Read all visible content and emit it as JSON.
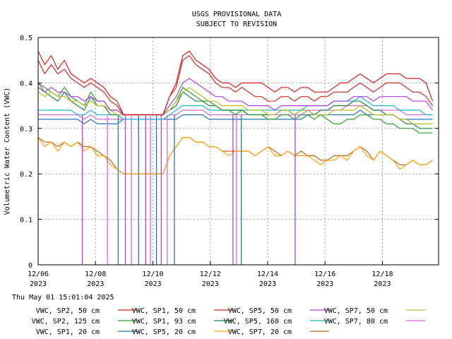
{
  "chart_data": {
    "type": "line",
    "title": "USGS PROVISIONAL DATA",
    "subtitle": "SUBJECT TO REVISION",
    "ylabel": "Volumetric Water Content (VWC)",
    "xlabel": "",
    "ylim": [
      0,
      0.5
    ],
    "yticks": [
      "0",
      "0.1",
      "0.2",
      "0.3",
      "0.4",
      "0.5"
    ],
    "xlim": [
      "2023-12-06",
      "2023-12-19T23:00"
    ],
    "xticks": [
      {
        "day": "12/06",
        "year": "2023",
        "date": "2023-12-06"
      },
      {
        "day": "12/08",
        "year": "2023",
        "date": "2023-12-08"
      },
      {
        "day": "12/10",
        "year": "2023",
        "date": "2023-12-10"
      },
      {
        "day": "12/12",
        "year": "2023",
        "date": "2023-12-12"
      },
      {
        "day": "12/14",
        "year": "2023",
        "date": "2023-12-14"
      },
      {
        "day": "12/16",
        "year": "2023",
        "date": "2023-12-16"
      },
      {
        "day": "12/18",
        "year": "2023",
        "date": "2023-12-18"
      }
    ],
    "grid": true,
    "legend_position": "bottom",
    "timestamp": "Thu May 01 15:01:04 2025",
    "dropouts": [
      [
        "2023-12-07T13:00",
        "2023-12-07T14:00"
      ],
      [
        "2023-12-08T10:00",
        "2023-12-08T11:00"
      ],
      [
        "2023-12-08T19:00",
        "2023-12-08T20:00"
      ],
      [
        "2023-12-09T01:00",
        "2023-12-09T02:00"
      ],
      [
        "2023-12-09T06:00",
        "2023-12-09T07:00"
      ],
      [
        "2023-12-09T12:00",
        "2023-12-09T13:00"
      ],
      [
        "2023-12-09T18:00",
        "2023-12-09T19:00"
      ],
      [
        "2023-12-09T22:00",
        "2023-12-09T23:00"
      ],
      [
        "2023-12-10T03:00",
        "2023-12-10T04:00"
      ],
      [
        "2023-12-10T07:00",
        "2023-12-10T08:00"
      ],
      [
        "2023-12-10T12:00",
        "2023-12-10T13:00"
      ],
      [
        "2023-12-10T18:00",
        "2023-12-10T19:00"
      ],
      [
        "2023-12-12T19:00",
        "2023-12-12T20:00"
      ],
      [
        "2023-12-12T22:00",
        "2023-12-12T23:00"
      ],
      [
        "2023-12-13T02:00",
        "2023-12-13T03:00"
      ],
      [
        "2023-12-14T23:00",
        "2023-12-15T00:00"
      ]
    ],
    "series": [
      {
        "name": "VWC, SP2, 50 cm",
        "color": "#e41a1c",
        "dropout": false,
        "values": [
          0.47,
          0.44,
          0.46,
          0.43,
          0.45,
          0.42,
          0.41,
          0.4,
          0.41,
          0.4,
          0.39,
          0.37,
          0.36,
          0.33,
          0.33,
          0.33,
          0.33,
          0.33,
          0.33,
          0.33,
          0.37,
          0.4,
          0.46,
          0.47,
          0.45,
          0.44,
          0.43,
          0.41,
          0.4,
          0.4,
          0.39,
          0.4,
          0.4,
          0.4,
          0.4,
          0.39,
          0.38,
          0.39,
          0.39,
          0.38,
          0.39,
          0.39,
          0.38,
          0.38,
          0.38,
          0.39,
          0.4,
          0.4,
          0.41,
          0.42,
          0.41,
          0.4,
          0.41,
          0.42,
          0.42,
          0.42,
          0.41,
          0.41,
          0.41,
          0.4,
          0.36
        ]
      },
      {
        "name": "VWC, SP1, 50 cm",
        "color": "#d62728",
        "dropout": false,
        "values": [
          0.45,
          0.42,
          0.44,
          0.42,
          0.43,
          0.41,
          0.4,
          0.39,
          0.4,
          0.39,
          0.38,
          0.36,
          0.35,
          0.33,
          0.33,
          0.33,
          0.33,
          0.33,
          0.33,
          0.33,
          0.37,
          0.39,
          0.45,
          0.46,
          0.44,
          0.43,
          0.42,
          0.4,
          0.39,
          0.39,
          0.38,
          0.39,
          0.38,
          0.37,
          0.37,
          0.36,
          0.36,
          0.37,
          0.37,
          0.36,
          0.37,
          0.37,
          0.36,
          0.37,
          0.37,
          0.38,
          0.38,
          0.38,
          0.39,
          0.4,
          0.39,
          0.38,
          0.39,
          0.4,
          0.4,
          0.4,
          0.39,
          0.38,
          0.38,
          0.37,
          0.35
        ]
      },
      {
        "name": "VWC, SP5, 50 cm",
        "color": "#b23ee6",
        "dropout": true,
        "values": [
          0.4,
          0.38,
          0.39,
          0.38,
          0.38,
          0.37,
          0.37,
          0.36,
          0.37,
          0.36,
          0.36,
          0.34,
          0.34,
          0.33,
          0.33,
          0.33,
          0.33,
          0.33,
          0.33,
          0.33,
          0.35,
          0.37,
          0.4,
          0.41,
          0.4,
          0.39,
          0.38,
          0.37,
          0.37,
          0.36,
          0.36,
          0.36,
          0.35,
          0.35,
          0.35,
          0.35,
          0.34,
          0.35,
          0.35,
          0.35,
          0.35,
          0.35,
          0.35,
          0.35,
          0.35,
          0.36,
          0.36,
          0.36,
          0.37,
          0.37,
          0.37,
          0.36,
          0.37,
          0.37,
          0.37,
          0.37,
          0.37,
          0.36,
          0.36,
          0.36,
          0.34
        ]
      },
      {
        "name": "VWC, SP7, 50 cm",
        "color": "#bcbd22",
        "dropout": false,
        "values": [
          0.38,
          0.37,
          0.38,
          0.37,
          0.37,
          0.36,
          0.36,
          0.35,
          0.36,
          0.35,
          0.35,
          0.34,
          0.33,
          0.33,
          0.33,
          0.33,
          0.33,
          0.33,
          0.33,
          0.33,
          0.34,
          0.36,
          0.38,
          0.39,
          0.38,
          0.37,
          0.36,
          0.36,
          0.35,
          0.35,
          0.35,
          0.35,
          0.34,
          0.34,
          0.34,
          0.33,
          0.33,
          0.34,
          0.34,
          0.33,
          0.34,
          0.34,
          0.33,
          0.33,
          0.33,
          0.34,
          0.34,
          0.34,
          0.34,
          0.35,
          0.34,
          0.33,
          0.33,
          0.33,
          0.33,
          0.32,
          0.32,
          0.31,
          0.31,
          0.31,
          0.31
        ]
      },
      {
        "name": "VWC, SP2, 125 cm",
        "color": "#2ca02c",
        "dropout": false,
        "values": [
          0.4,
          0.39,
          0.38,
          0.37,
          0.39,
          0.37,
          0.36,
          0.35,
          0.38,
          0.36,
          0.36,
          0.34,
          0.34,
          0.33,
          0.33,
          0.33,
          0.33,
          0.33,
          0.33,
          0.33,
          0.34,
          0.36,
          0.39,
          0.38,
          0.37,
          0.36,
          0.36,
          0.35,
          0.34,
          0.34,
          0.33,
          0.34,
          0.33,
          0.33,
          0.33,
          0.32,
          0.32,
          0.33,
          0.33,
          0.32,
          0.33,
          0.33,
          0.32,
          0.33,
          0.32,
          0.31,
          0.31,
          0.32,
          0.32,
          0.33,
          0.33,
          0.32,
          0.32,
          0.31,
          0.31,
          0.3,
          0.3,
          0.3,
          0.29,
          0.29,
          0.29
        ]
      },
      {
        "name": "VWC, SP1, 93 cm",
        "color": "#1b8a3a",
        "dropout": false,
        "values": [
          0.39,
          0.38,
          0.37,
          0.36,
          0.38,
          0.36,
          0.35,
          0.34,
          0.37,
          0.35,
          0.35,
          0.33,
          0.33,
          0.33,
          0.33,
          0.33,
          0.33,
          0.33,
          0.33,
          0.33,
          0.34,
          0.35,
          0.38,
          0.37,
          0.36,
          0.36,
          0.35,
          0.35,
          0.34,
          0.34,
          0.34,
          0.34,
          0.33,
          0.33,
          0.33,
          0.33,
          0.33,
          0.34,
          0.34,
          0.33,
          0.34,
          0.34,
          0.33,
          0.34,
          0.34,
          0.35,
          0.35,
          0.35,
          0.36,
          0.36,
          0.35,
          0.34,
          0.34,
          0.33,
          0.33,
          0.32,
          0.31,
          0.31,
          0.3,
          0.3,
          0.3
        ]
      },
      {
        "name": "VWC, SP5, 160 cm",
        "color": "#17becf",
        "dropout": false,
        "values": [
          0.34,
          0.34,
          0.34,
          0.34,
          0.34,
          0.34,
          0.33,
          0.33,
          0.34,
          0.33,
          0.33,
          0.33,
          0.33,
          0.32,
          0.32,
          0.32,
          0.32,
          0.32,
          0.32,
          0.32,
          0.33,
          0.34,
          0.35,
          0.35,
          0.35,
          0.35,
          0.34,
          0.34,
          0.34,
          0.34,
          0.34,
          0.34,
          0.34,
          0.34,
          0.34,
          0.34,
          0.34,
          0.34,
          0.34,
          0.34,
          0.34,
          0.35,
          0.35,
          0.35,
          0.35,
          0.36,
          0.36,
          0.36,
          0.36,
          0.37,
          0.36,
          0.35,
          0.35,
          0.35,
          0.35,
          0.34,
          0.34,
          0.34,
          0.34,
          0.33,
          0.33
        ]
      },
      {
        "name": "VWC, SP7, 80 cm",
        "color": "#d36bd9",
        "dropout": true,
        "values": [
          0.33,
          0.33,
          0.33,
          0.33,
          0.33,
          0.33,
          0.33,
          0.32,
          0.33,
          0.32,
          0.32,
          0.32,
          0.32,
          0.32,
          0.32,
          0.32,
          0.32,
          0.32,
          0.32,
          0.32,
          0.33,
          0.33,
          0.34,
          0.34,
          0.34,
          0.34,
          0.33,
          0.33,
          0.33,
          0.33,
          0.33,
          0.33,
          0.33,
          0.33,
          0.33,
          0.33,
          0.33,
          0.33,
          0.33,
          0.33,
          0.33,
          0.34,
          0.34,
          0.34,
          0.34,
          0.34,
          0.34,
          0.35,
          0.35,
          0.35,
          0.35,
          0.34,
          0.34,
          0.34,
          0.34,
          0.34,
          0.33,
          0.33,
          0.33,
          0.33,
          0.33
        ]
      },
      {
        "name": "VWC, SP1, 20 cm",
        "color": "#1f77b4",
        "dropout": true,
        "values": [
          0.32,
          0.32,
          0.32,
          0.32,
          0.32,
          0.32,
          0.32,
          0.31,
          0.32,
          0.31,
          0.31,
          0.31,
          0.31,
          0.32,
          0.32,
          0.32,
          0.32,
          0.32,
          0.32,
          0.32,
          0.32,
          0.32,
          0.33,
          0.33,
          0.33,
          0.33,
          0.32,
          0.32,
          0.32,
          0.32,
          0.32,
          0.32,
          0.32,
          0.32,
          0.32,
          0.32,
          0.32,
          0.32,
          0.32,
          0.32,
          0.32,
          0.33,
          0.33,
          0.33,
          0.33,
          0.33,
          0.33,
          0.33,
          0.33,
          0.34,
          0.33,
          0.33,
          0.33,
          0.33,
          0.33,
          0.32,
          0.32,
          0.32,
          0.32,
          0.32,
          0.32
        ]
      },
      {
        "name": "VWC, SP5, 20 cm",
        "color": "#ffa500",
        "dropout": false,
        "values": [
          0.28,
          0.26,
          0.27,
          0.25,
          0.27,
          0.26,
          0.27,
          0.25,
          0.26,
          0.24,
          0.24,
          0.22,
          0.21,
          0.2,
          0.2,
          0.2,
          0.2,
          0.2,
          0.2,
          0.2,
          0.24,
          0.26,
          0.28,
          0.28,
          0.27,
          0.27,
          0.26,
          0.26,
          0.25,
          0.24,
          0.25,
          0.25,
          0.25,
          0.24,
          0.25,
          0.26,
          0.24,
          0.24,
          0.25,
          0.24,
          0.24,
          0.24,
          0.23,
          0.22,
          0.23,
          0.23,
          0.24,
          0.23,
          0.25,
          0.26,
          0.24,
          0.23,
          0.25,
          0.24,
          0.23,
          0.21,
          0.22,
          0.23,
          0.22,
          0.22,
          0.23
        ]
      },
      {
        "name": "VWC, SP7, 20 cm",
        "color": "#c4641a",
        "dropout": false,
        "values": [
          0.28,
          0.27,
          0.27,
          0.26,
          0.27,
          0.26,
          0.27,
          0.26,
          0.26,
          0.25,
          0.24,
          0.23,
          0.21,
          0.2,
          0.2,
          0.2,
          0.2,
          0.2,
          0.2,
          0.2,
          0.24,
          0.26,
          0.28,
          0.28,
          0.27,
          0.27,
          0.26,
          0.26,
          0.25,
          0.25,
          0.25,
          0.25,
          0.25,
          0.24,
          0.25,
          0.26,
          0.25,
          0.24,
          0.25,
          0.24,
          0.25,
          0.24,
          0.24,
          0.23,
          0.23,
          0.24,
          0.24,
          0.24,
          0.25,
          0.26,
          0.25,
          0.23,
          0.25,
          0.24,
          0.23,
          0.22,
          0.22,
          0.23,
          0.22,
          0.22,
          0.23
        ]
      }
    ]
  }
}
